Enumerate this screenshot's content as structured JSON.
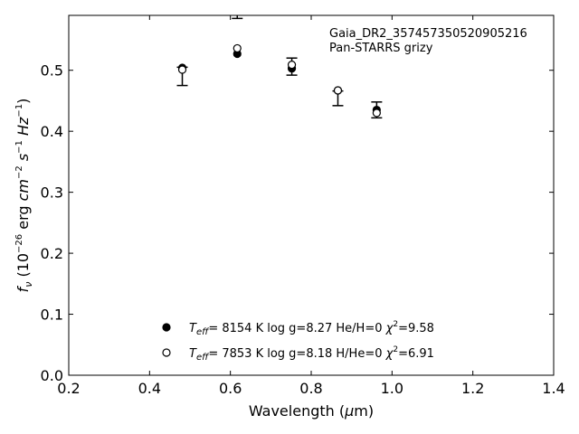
{
  "chart_data": {
    "type": "scatter",
    "title": "",
    "annotation_lines": [
      "Gaia_DR2_357457350520905216",
      "Pan-STARRS grizy"
    ],
    "xlabel": "Wavelength (μm)",
    "ylabel": "fν (10⁻²⁶ erg cm⁻² s⁻¹ Hz⁻¹)",
    "xlim": [
      0.2,
      1.4
    ],
    "ylim": [
      0.0,
      0.59
    ],
    "xticks": [
      "0.2",
      "0.4",
      "0.6",
      "0.8",
      "1.0",
      "1.2",
      "1.4"
    ],
    "yticks": [
      "0.0",
      "0.1",
      "0.2",
      "0.3",
      "0.4",
      "0.5"
    ],
    "grid": false,
    "legend_position": "bottom-center",
    "observed": {
      "x": [
        0.481,
        0.617,
        0.752,
        0.866,
        0.962
      ],
      "y": [
        0.49,
        0.615,
        0.506,
        0.454,
        0.435
      ],
      "yerr": [
        0.015,
        0.03,
        0.014,
        0.012,
        0.013
      ]
    },
    "series": [
      {
        "name": "Teff= 8154 K log g=8.27 He/H=0 χ²=9.58",
        "marker": "filled-circle",
        "x": [
          0.481,
          0.617,
          0.752,
          0.866,
          0.962
        ],
        "y": [
          0.504,
          0.527,
          0.503,
          0.467,
          0.435
        ]
      },
      {
        "name": "Teff= 7853 K log g=8.18 H/He=0 χ²=6.91",
        "marker": "open-circle",
        "x": [
          0.481,
          0.617,
          0.752,
          0.866,
          0.962
        ],
        "y": [
          0.501,
          0.536,
          0.509,
          0.467,
          0.43
        ]
      }
    ],
    "legend": {
      "entries": [
        {
          "teff_label": "T",
          "teff_sub": "eff",
          "rest": "=  8154 K  log g=8.27  He/H=0  ",
          "chi_label": "χ",
          "chi_sup": "2",
          "chi_rest": "=9.58"
        },
        {
          "teff_label": "T",
          "teff_sub": "eff",
          "rest": "=  7853 K  log g=8.18  H/He=0  ",
          "chi_label": "χ",
          "chi_sup": "2",
          "chi_rest": "=6.91"
        }
      ]
    },
    "ylabel_parts": {
      "f": "f",
      "nu": "ν",
      "a": " (10",
      "e1": "−26",
      "b": " erg ",
      "cm": "cm",
      "e2": "−2",
      "s": " s",
      "e3": "−1",
      "hz": " Hz",
      "e4": "−1",
      "c": ")"
    },
    "xlabel_parts": {
      "a": "Wavelength (",
      "mu": "μ",
      "b": "m)"
    }
  }
}
